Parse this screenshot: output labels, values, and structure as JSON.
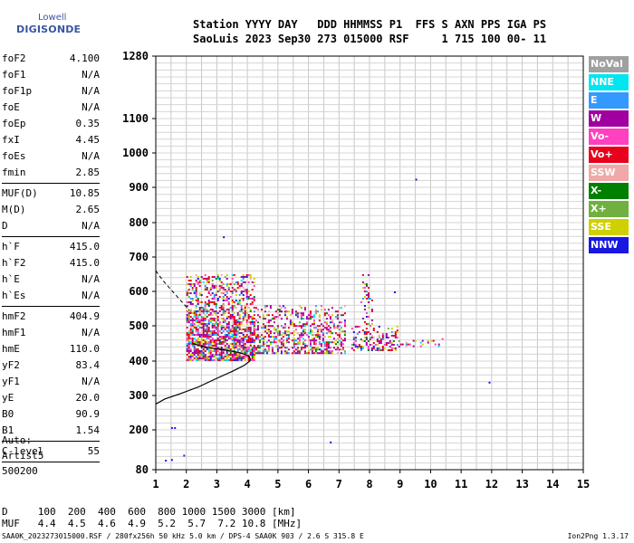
{
  "logo": {
    "line1": "Lowell",
    "line2": "DIGISONDE"
  },
  "header": {
    "line1": "Station YYYY DAY   DDD HHMMSS P1  FFS S AXN PPS IGA PS",
    "line2": "SaoLuis 2023 Sep30 273 015000 RSF     1 715 100 00- 11"
  },
  "params": [
    {
      "name": "foF2",
      "value": "4.100"
    },
    {
      "name": "foF1",
      "value": "N/A"
    },
    {
      "name": "foF1p",
      "value": "N/A"
    },
    {
      "name": "foE",
      "value": "N/A"
    },
    {
      "name": "foEp",
      "value": "0.35"
    },
    {
      "name": "fxI",
      "value": "4.45"
    },
    {
      "name": "foEs",
      "value": "N/A"
    },
    {
      "name": "fmin",
      "value": "2.85"
    },
    {
      "sep": true
    },
    {
      "name": "MUF(D)",
      "value": "10.85"
    },
    {
      "name": "M(D)",
      "value": "2.65"
    },
    {
      "name": "D",
      "value": "N/A"
    },
    {
      "sep": true
    },
    {
      "name": "h`F",
      "value": "415.0"
    },
    {
      "name": "h`F2",
      "value": "415.0"
    },
    {
      "name": "h`E",
      "value": "N/A"
    },
    {
      "name": "h`Es",
      "value": "N/A"
    },
    {
      "sep": true
    },
    {
      "name": "hmF2",
      "value": "404.9"
    },
    {
      "name": "hmF1",
      "value": "N/A"
    },
    {
      "name": "hmE",
      "value": "110.0"
    },
    {
      "name": "yF2",
      "value": "83.4"
    },
    {
      "name": "yF1",
      "value": "N/A"
    },
    {
      "name": "yE",
      "value": "20.0"
    },
    {
      "name": "B0",
      "value": "90.9"
    },
    {
      "name": "B1",
      "value": "1.54"
    },
    {
      "sep": true
    },
    {
      "name": "C-level",
      "value": "55"
    },
    {
      "sep": true
    }
  ],
  "auto": {
    "line1": "Auto:",
    "line2": "Artist5",
    "line3": "500200"
  },
  "muf_table": {
    "line1": "D     100  200  400  600  800 1000 1500 3000 [km]",
    "line2": "MUF   4.4  4.5  4.6  4.9  5.2  5.7  7.2 10.8 [MHz]"
  },
  "footer": {
    "left": "SAA0K_2023273015000.RSF / 280fx256h 50 kHz 5.0 km / DPS-4 SAA0K 903 / 2.6 S 315.8 E",
    "right": "Ion2Png 1.3.17"
  },
  "legend": [
    {
      "label": "NoVal",
      "color": "#a0a0a0"
    },
    {
      "label": "NNE",
      "color": "#00e6f0"
    },
    {
      "label": "E",
      "color": "#3399ff"
    },
    {
      "label": "W",
      "color": "#a000a0"
    },
    {
      "label": "Vo-",
      "color": "#ff40c0"
    },
    {
      "label": "Vo+",
      "color": "#e8001c"
    },
    {
      "label": "SSW",
      "color": "#f0a8a8"
    },
    {
      "label": "X-",
      "color": "#008000"
    },
    {
      "label": "X+",
      "color": "#70b040"
    },
    {
      "label": "SSE",
      "color": "#d0d000"
    },
    {
      "label": "NNW",
      "color": "#1818e0"
    }
  ],
  "chart_data": {
    "type": "scatter",
    "x_ticks": [
      1,
      2,
      3,
      4,
      5,
      6,
      7,
      8,
      9,
      10,
      11,
      12,
      13,
      14,
      15
    ],
    "y_ticks": [
      80,
      200,
      300,
      400,
      500,
      600,
      700,
      800,
      900,
      1000,
      1100,
      1280
    ],
    "xlim": [
      1,
      15
    ],
    "ylim": [
      80,
      1280
    ],
    "grid": true,
    "profile_curve": [
      [
        1.0,
        275
      ],
      [
        1.3,
        290
      ],
      [
        1.8,
        305
      ],
      [
        2.4,
        325
      ],
      [
        3.0,
        350
      ],
      [
        3.5,
        370
      ],
      [
        3.9,
        388
      ],
      [
        4.08,
        400
      ],
      [
        4.1,
        404.9
      ],
      [
        4.05,
        415
      ],
      [
        3.7,
        425
      ],
      [
        3.2,
        432
      ],
      [
        2.6,
        440
      ],
      [
        2.2,
        450
      ]
    ],
    "profile_dashed": [
      [
        1.0,
        660
      ],
      [
        1.25,
        630
      ],
      [
        1.55,
        600
      ],
      [
        1.85,
        570
      ],
      [
        2.1,
        545
      ]
    ],
    "echo_clusters": [
      {
        "x": [
          2.0,
          4.2
        ],
        "y": [
          400,
          650
        ],
        "density": 0.85
      },
      {
        "x": [
          4.2,
          7.2
        ],
        "y": [
          425,
          560
        ],
        "density": 0.55
      },
      {
        "x": [
          7.4,
          9.0
        ],
        "y": [
          430,
          500
        ],
        "density": 0.5
      },
      {
        "x": [
          9.0,
          10.4
        ],
        "y": [
          440,
          465
        ],
        "density": 0.3
      },
      {
        "x": [
          7.7,
          8.1
        ],
        "y": [
          500,
          650
        ],
        "density": 0.25
      }
    ],
    "isolated_echoes": [
      {
        "x": 1.5,
        "y": 208
      },
      {
        "x": 1.6,
        "y": 208
      },
      {
        "x": 1.3,
        "y": 110
      },
      {
        "x": 1.5,
        "y": 112
      },
      {
        "x": 1.9,
        "y": 125
      },
      {
        "x": 3.2,
        "y": 760
      },
      {
        "x": 9.5,
        "y": 925
      },
      {
        "x": 11.9,
        "y": 340
      },
      {
        "x": 6.7,
        "y": 165
      },
      {
        "x": 8.8,
        "y": 600
      }
    ]
  }
}
